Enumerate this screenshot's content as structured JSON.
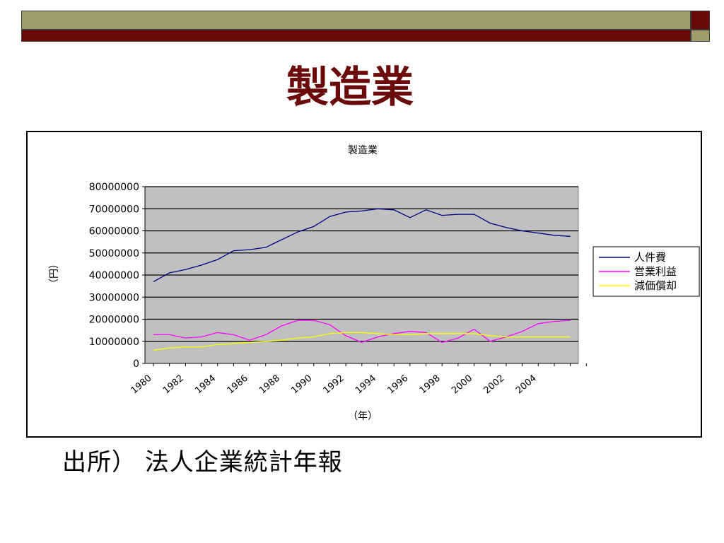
{
  "slide": {
    "title": "製造業",
    "source": "出所） 法人企業統計年報"
  },
  "colors": {
    "band_olive": "#a09c6a",
    "band_maroon": "#6b0a0a",
    "title": "#6b0a0a",
    "plot_bg": "#c0c0c0"
  },
  "chart_data": {
    "type": "line",
    "title": "製造業",
    "xlabel": "（年）",
    "ylabel": "（円）",
    "ylim": [
      0,
      80000000
    ],
    "yticks": [
      "80000000",
      "70000000",
      "60000000",
      "50000000",
      "40000000",
      "30000000",
      "20000000",
      "10000000",
      "0"
    ],
    "xticks": [
      "1980",
      "1982",
      "1984",
      "1986",
      "1988",
      "1990",
      "1992",
      "1994",
      "1996",
      "1998",
      "2000",
      "2002",
      "2004"
    ],
    "x": [
      1980,
      1981,
      1982,
      1983,
      1984,
      1985,
      1986,
      1987,
      1988,
      1989,
      1990,
      1991,
      1992,
      1993,
      1994,
      1995,
      1996,
      1997,
      1998,
      1999,
      2000,
      2001,
      2002,
      2003,
      2004,
      2005,
      2006
    ],
    "grid": true,
    "legend_position": "right",
    "series": [
      {
        "name": "人件費",
        "color": "#000080",
        "values": [
          37000000,
          41000000,
          42500000,
          44500000,
          47000000,
          51000000,
          51500000,
          52500000,
          56000000,
          59500000,
          62000000,
          66500000,
          68500000,
          69000000,
          70000000,
          69500000,
          66000000,
          69500000,
          67000000,
          67500000,
          67500000,
          63500000,
          61500000,
          60000000,
          59000000,
          58000000,
          57500000
        ]
      },
      {
        "name": "営業利益",
        "color": "#ff00ff",
        "values": [
          13000000,
          13000000,
          11500000,
          12000000,
          14000000,
          13000000,
          10500000,
          13000000,
          17000000,
          19500000,
          19500000,
          17500000,
          12500000,
          9500000,
          12000000,
          13500000,
          14500000,
          14000000,
          9500000,
          11500000,
          15500000,
          10000000,
          12000000,
          14500000,
          18000000,
          19000000,
          19500000
        ]
      },
      {
        "name": "減価償却",
        "color": "#ffff00",
        "values": [
          6000000,
          7000000,
          7500000,
          7500000,
          8500000,
          9000000,
          9500000,
          10000000,
          10500000,
          11500000,
          12000000,
          13500000,
          14000000,
          14000000,
          13500000,
          13000000,
          13000000,
          13500000,
          13500000,
          13500000,
          13500000,
          12500000,
          12000000,
          12000000,
          12000000,
          12000000,
          12000000
        ]
      }
    ]
  }
}
